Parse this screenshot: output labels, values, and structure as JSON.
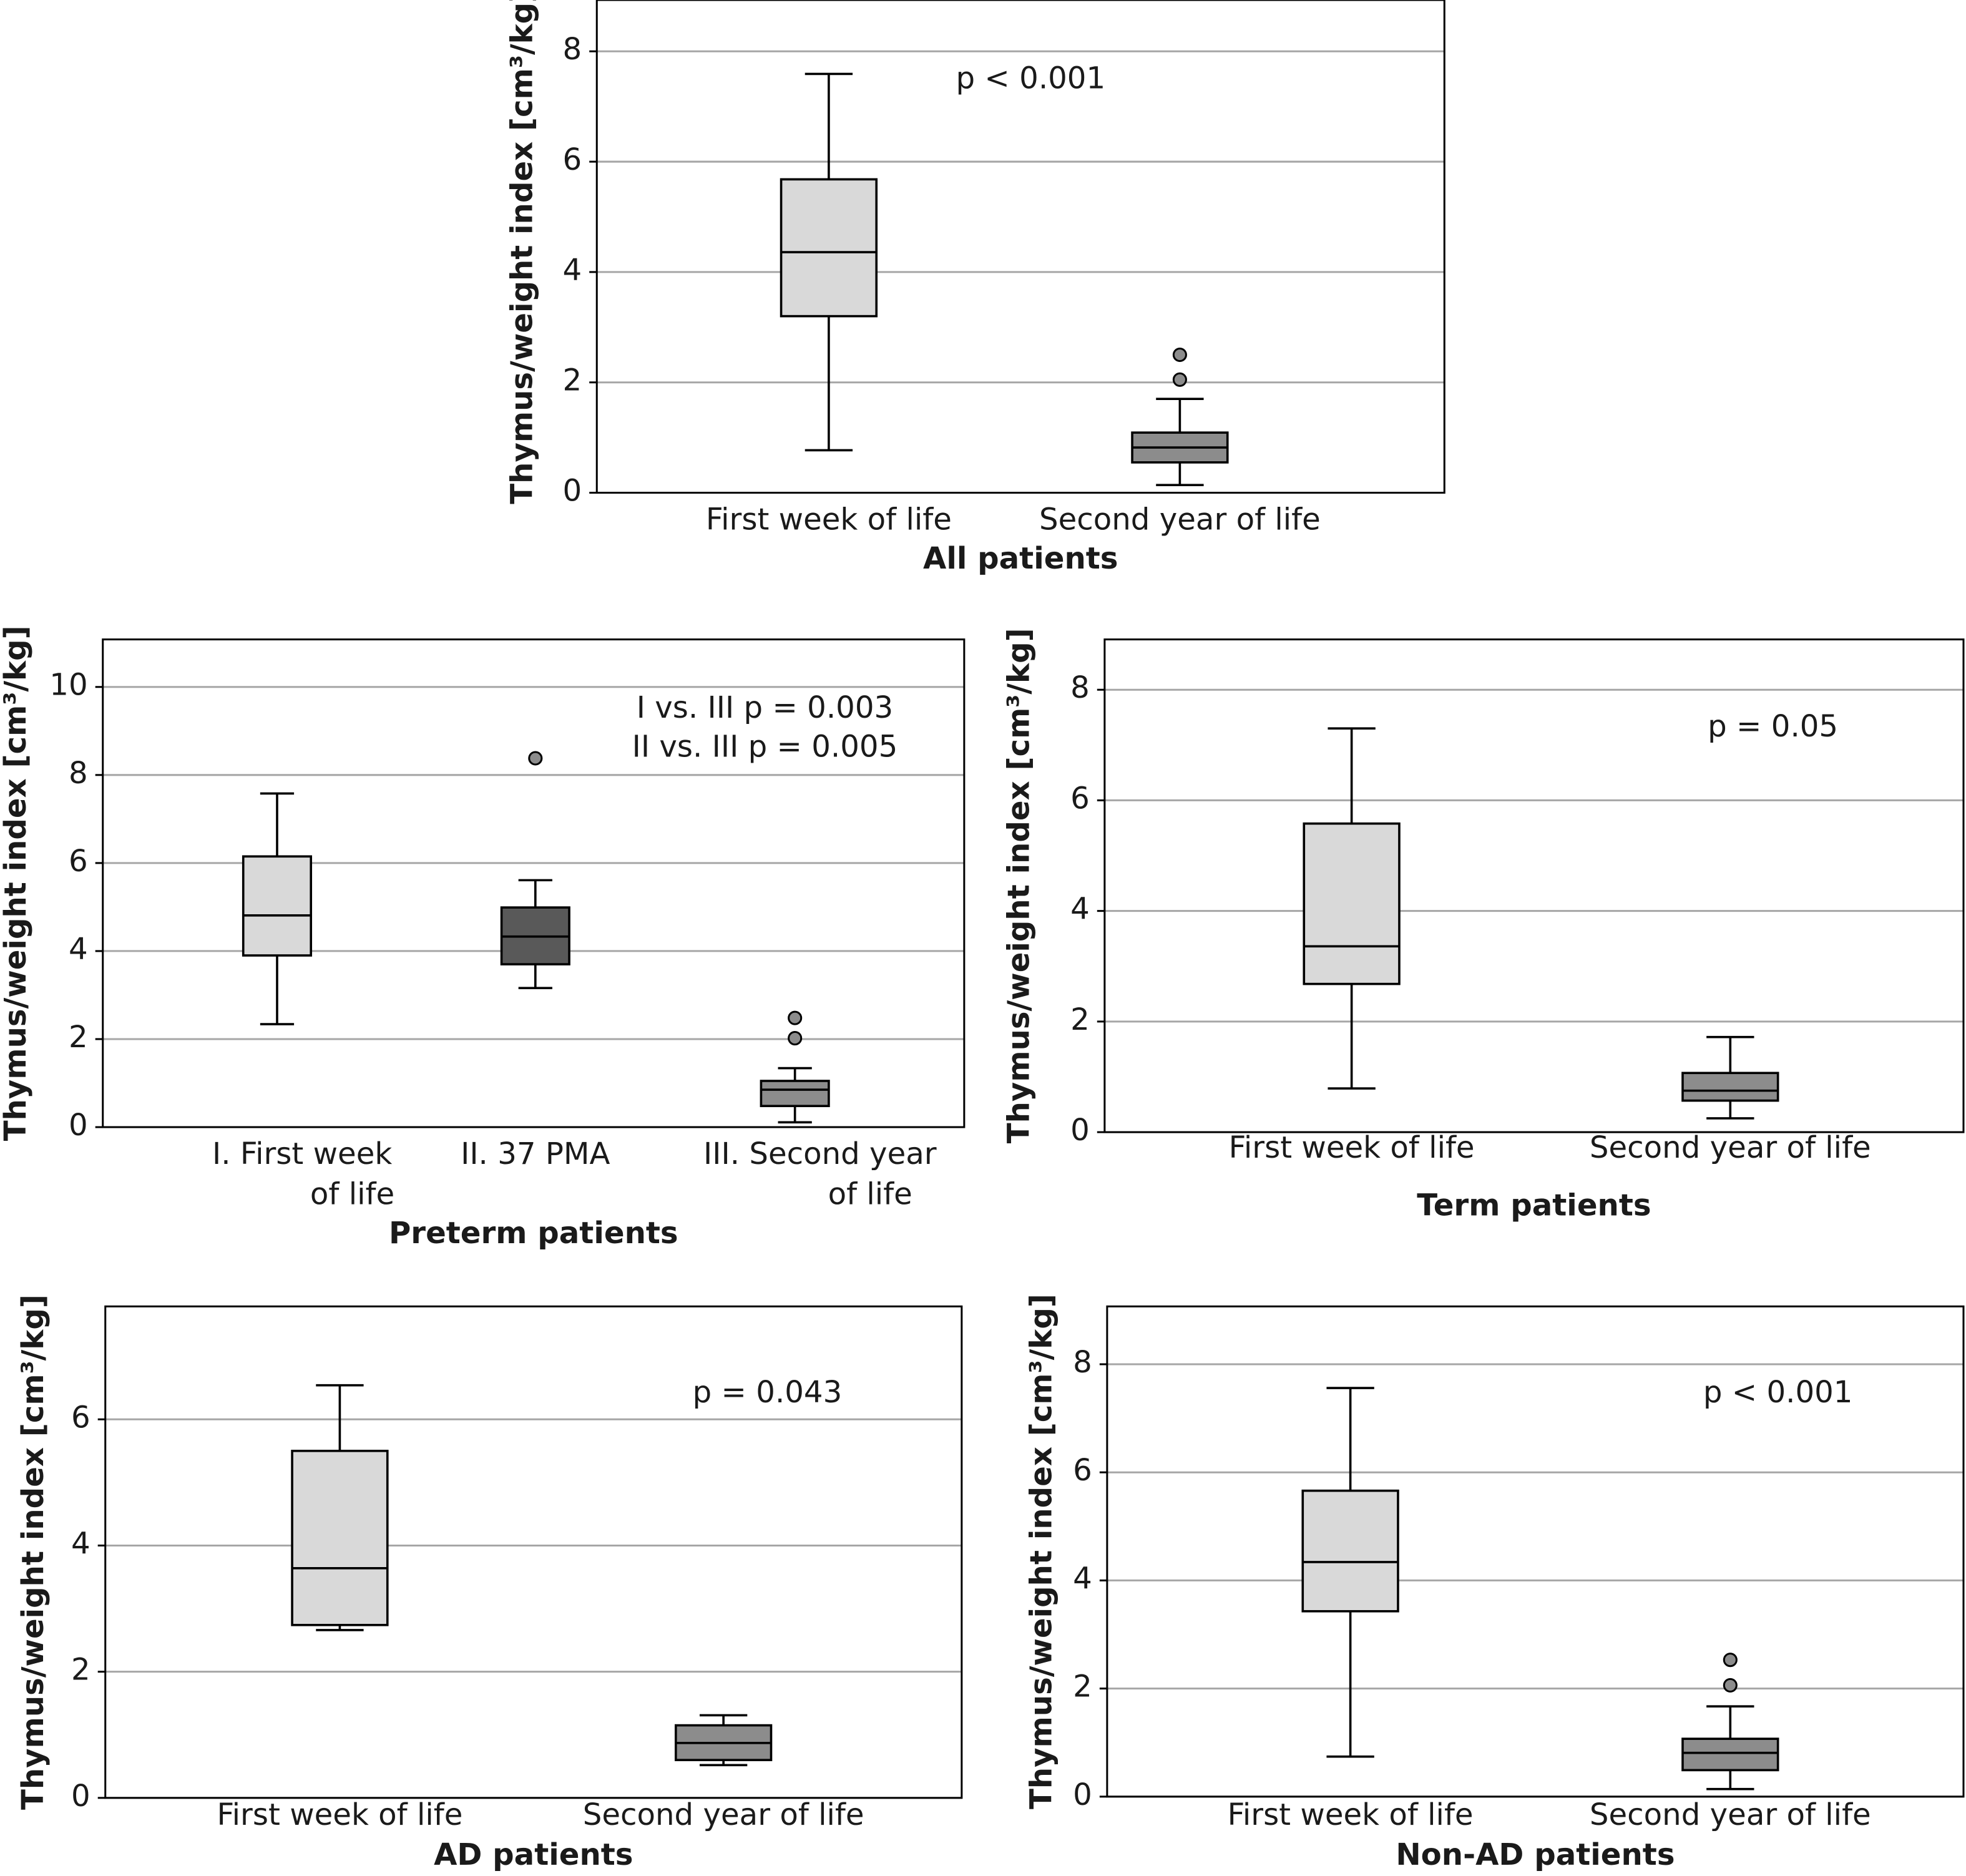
{
  "chart_data": [
    {
      "type": "box",
      "title": "All patients",
      "ylabel": "Thymus/weight index [cm³/kg]",
      "annotations": [
        "p < 0.001"
      ],
      "categories": [
        "First week of life",
        "Second year of life"
      ],
      "boxes": [
        {
          "low": 0.77,
          "q1": 3.2,
          "median": 4.36,
          "q3": 5.68,
          "high": 7.59,
          "outliers": [],
          "color": "#d9d9d9"
        },
        {
          "low": 0.14,
          "q1": 0.55,
          "median": 0.82,
          "q3": 1.09,
          "high": 1.7,
          "outliers": [
            2.05,
            2.5
          ],
          "color": "#8c8c8c"
        }
      ],
      "ylim": [
        0,
        8.93
      ],
      "yticks": [
        0,
        2,
        4,
        6,
        8
      ],
      "grid": true
    },
    {
      "type": "box",
      "title": "Preterm patients",
      "ylabel": "Thymus/weight index [cm³/kg]",
      "annotations": [
        "I vs. III p = 0.003",
        "II vs. III p = 0.005"
      ],
      "categories": [
        "I. First week of life",
        "II. 37 PMA",
        "III. Second year of life"
      ],
      "boxes": [
        {
          "low": 2.34,
          "q1": 3.9,
          "median": 4.81,
          "q3": 6.15,
          "high": 7.58,
          "outliers": [],
          "color": "#d9d9d9"
        },
        {
          "low": 3.16,
          "q1": 3.7,
          "median": 4.33,
          "q3": 4.99,
          "high": 5.61,
          "outliers": [
            8.38
          ],
          "color": "#595959"
        },
        {
          "low": 0.11,
          "q1": 0.48,
          "median": 0.85,
          "q3": 1.05,
          "high": 1.34,
          "outliers": [
            2.02,
            2.48
          ],
          "color": "#8c8c8c"
        }
      ],
      "ylim": [
        0,
        11.08
      ],
      "yticks": [
        0,
        2,
        4,
        6,
        8,
        10
      ],
      "grid": true
    },
    {
      "type": "box",
      "title": "Term patients",
      "ylabel": "Thymus/weight index [cm³/kg]",
      "annotations": [
        "p = 0.05"
      ],
      "categories": [
        "First week of life",
        "Second year of life"
      ],
      "boxes": [
        {
          "low": 0.79,
          "q1": 2.68,
          "median": 3.36,
          "q3": 5.58,
          "high": 7.3,
          "outliers": [],
          "color": "#d9d9d9"
        },
        {
          "low": 0.25,
          "q1": 0.57,
          "median": 0.75,
          "q3": 1.07,
          "high": 1.72,
          "outliers": [],
          "color": "#8c8c8c"
        }
      ],
      "ylim": [
        0,
        8.91
      ],
      "yticks": [
        0,
        2,
        4,
        6,
        8
      ],
      "grid": true
    },
    {
      "type": "box",
      "title": "AD patients",
      "ylabel": "Thymus/weight index [cm³/kg]",
      "annotations": [
        "p = 0.043"
      ],
      "categories": [
        "First week of life",
        "Second year of life"
      ],
      "boxes": [
        {
          "low": 2.66,
          "q1": 2.74,
          "median": 3.64,
          "q3": 5.5,
          "high": 6.54,
          "outliers": [],
          "color": "#d9d9d9"
        },
        {
          "low": 0.52,
          "q1": 0.6,
          "median": 0.87,
          "q3": 1.15,
          "high": 1.31,
          "outliers": [],
          "color": "#8c8c8c"
        }
      ],
      "ylim": [
        0,
        7.79
      ],
      "yticks": [
        0,
        2,
        4,
        6
      ],
      "grid": true
    },
    {
      "type": "box",
      "title": "Non-AD patients",
      "ylabel": "Thymus/weight index [cm³/kg]",
      "annotations": [
        "p < 0.001"
      ],
      "categories": [
        "First week of life",
        "Second year of life"
      ],
      "boxes": [
        {
          "low": 0.74,
          "q1": 3.43,
          "median": 4.34,
          "q3": 5.66,
          "high": 7.56,
          "outliers": [],
          "color": "#d9d9d9"
        },
        {
          "low": 0.14,
          "q1": 0.49,
          "median": 0.81,
          "q3": 1.07,
          "high": 1.67,
          "outliers": [
            2.06,
            2.53
          ],
          "color": "#8c8c8c"
        }
      ],
      "ylim": [
        0,
        9.07
      ],
      "yticks": [
        0,
        2,
        4,
        6,
        8
      ],
      "grid": true
    }
  ]
}
